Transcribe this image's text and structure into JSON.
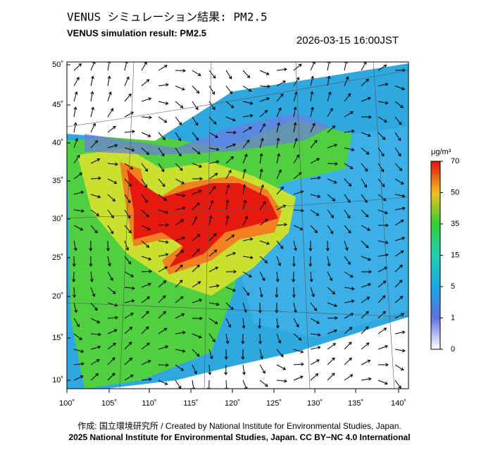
{
  "header": {
    "title": "VENUS シミュレーション結果: PM2.5",
    "subtitle": "VENUS simulation result: PM2.5",
    "timestamp": "2026-03-15 16:00JST"
  },
  "map": {
    "lat_labels": [
      "50˚",
      "45˚",
      "40˚",
      "35˚",
      "30˚",
      "25˚",
      "20˚",
      "15˚",
      "10˚"
    ],
    "lon_labels": [
      "100˚",
      "105˚",
      "110˚",
      "115˚",
      "120˚",
      "125˚",
      "130˚",
      "135˚",
      "140˚"
    ]
  },
  "colorbar": {
    "unit": "μg/m³",
    "labels": [
      "70",
      "50",
      "35",
      "15",
      "5",
      "1",
      "0"
    ]
  },
  "footer": {
    "credit": "作成: 国立環境研究所 / Created by National Institute for Environmental Studies, Japan.",
    "license": "2025 National Institute for Environmental Studies, Japan. CC BY−NC 4.0 International"
  }
}
